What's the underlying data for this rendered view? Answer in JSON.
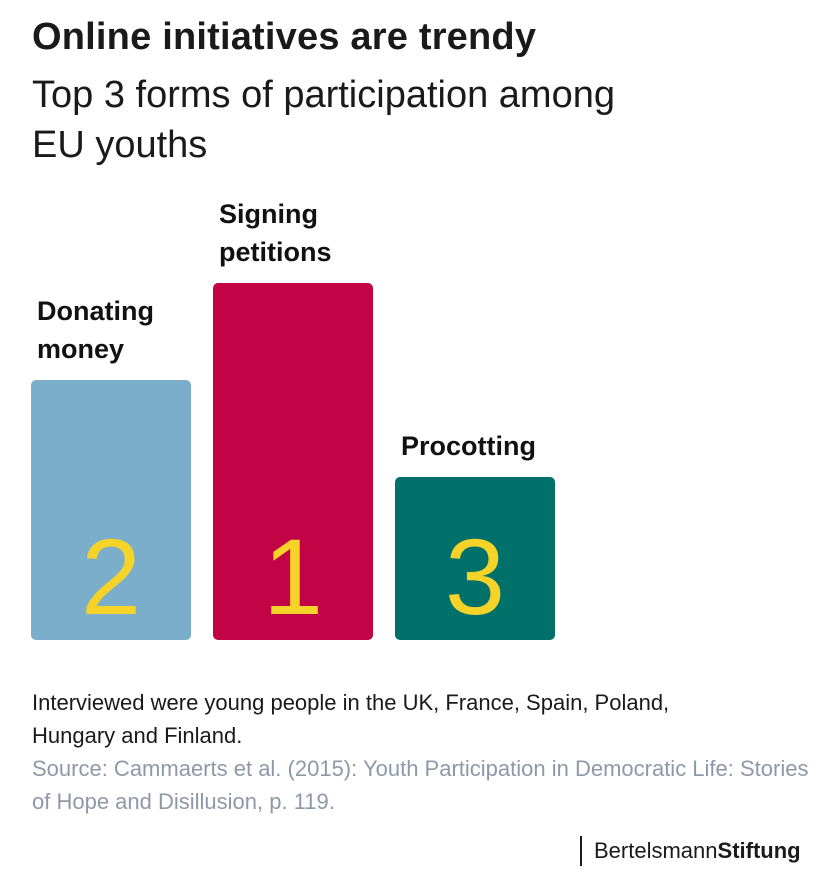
{
  "title": "Online initiatives are trendy",
  "subtitle": "Top 3 forms of participation among EU youths",
  "chart_data": {
    "type": "bar",
    "categories": [
      "Donating money",
      "Signing petitions",
      "Procotting"
    ],
    "category_lines": [
      [
        "Donating",
        "money"
      ],
      [
        "Signing",
        "petitions"
      ],
      [
        "Procotting"
      ]
    ],
    "values": [
      2,
      1,
      3
    ],
    "value_labels": [
      "2",
      "1",
      "3"
    ],
    "colors": [
      "#7aaecb",
      "#c20447",
      "#00706a"
    ],
    "rank_label_color": "#f5d328",
    "title": "Online initiatives are trendy",
    "xlabel": "",
    "ylabel": "",
    "grid": false
  },
  "note": "Interviewed were young people in the UK, France, Spain, Poland, Hungary and Finland.",
  "source": "Source: Cammaerts et al. (2015): Youth Participation in Democratic Life: Stories of Hope and Disillusion, p. 119.",
  "logo": {
    "regular": "Bertelsmann",
    "bold": "Stiftung"
  }
}
